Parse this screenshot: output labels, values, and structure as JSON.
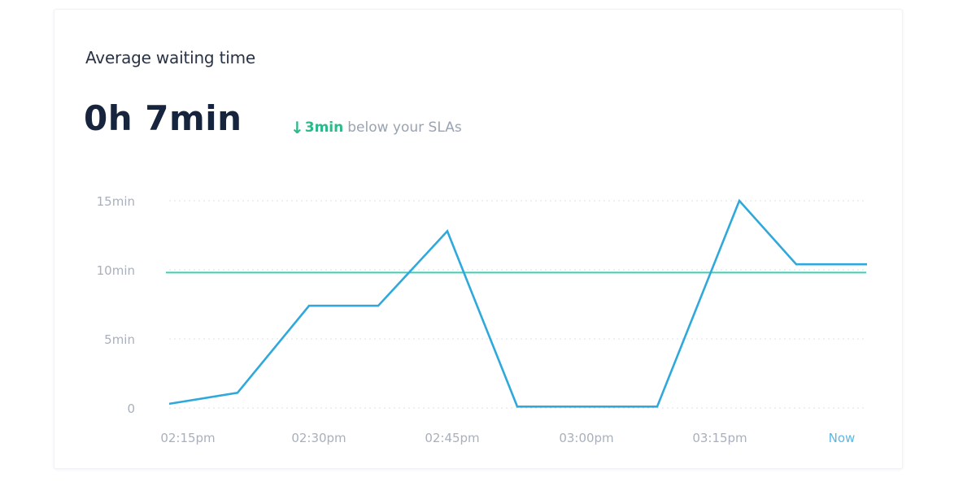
{
  "card": {
    "title": "Average waiting time",
    "value": "0h 7min",
    "delta": {
      "icon": "arrow-down-icon",
      "arrow": "↓",
      "value": "3min",
      "text": "below your SLAs",
      "color": "#2bb98b"
    }
  },
  "colors": {
    "series": "#2fa8dc",
    "sla_line": "#3fcfb5",
    "grid": "#dde3ea",
    "axis_text": "#a9b0bc",
    "now_label": "#5bb8e0"
  },
  "chart_data": {
    "type": "line",
    "title": "Average waiting time",
    "xlabel": "",
    "ylabel": "",
    "ylim": [
      0,
      15
    ],
    "yticks": [
      "0",
      "5min",
      "10min",
      "15min"
    ],
    "ytick_values": [
      0,
      5,
      10,
      15
    ],
    "xticks": [
      "02:15pm",
      "02:30pm",
      "02:45pm",
      "03:00pm",
      "03:15pm",
      "Now"
    ],
    "grid": "dotted horizontal",
    "legend": "none",
    "series": [
      {
        "name": "Average waiting time (min)",
        "x": [
          "02:10pm",
          "02:18pm",
          "02:26pm",
          "02:34pm",
          "02:42pm",
          "02:50pm",
          "02:58pm",
          "03:06pm",
          "03:14pm",
          "03:22pm",
          "03:30pm"
        ],
        "values": [
          0.3,
          1.1,
          7.4,
          7.4,
          12.8,
          0.1,
          0.1,
          0.1,
          15.0,
          10.4,
          10.4
        ]
      }
    ],
    "reference_lines": [
      {
        "name": "SLA",
        "value": 9.8
      }
    ]
  }
}
